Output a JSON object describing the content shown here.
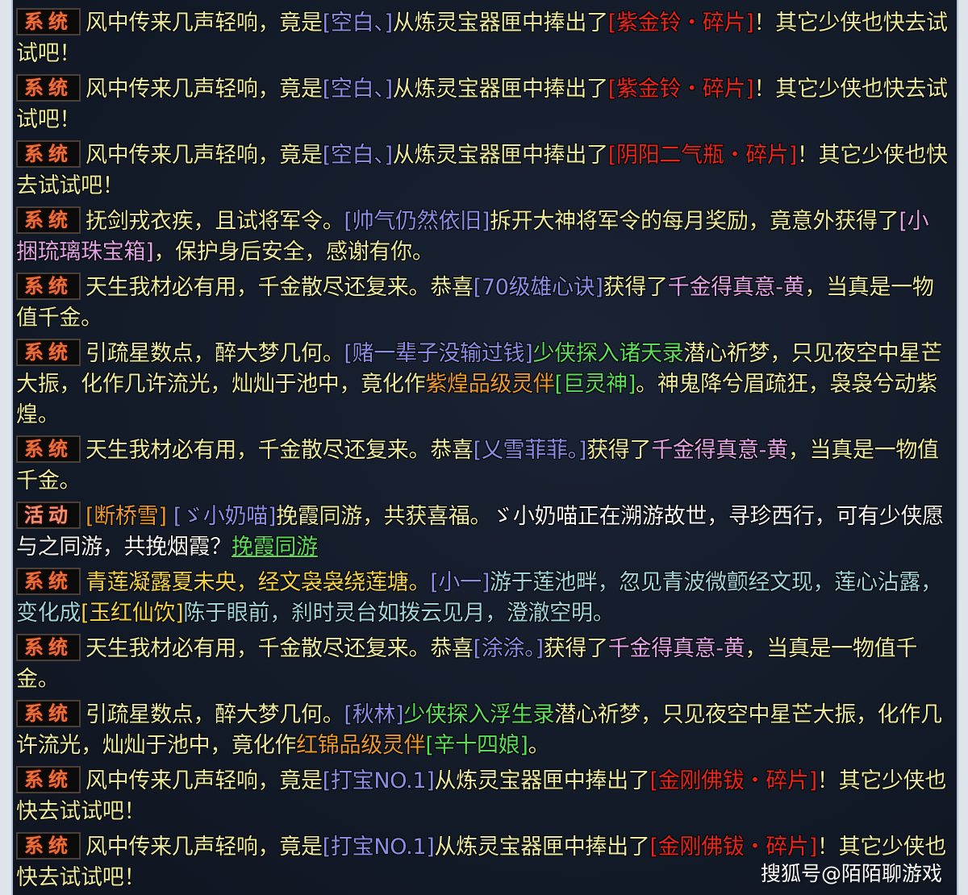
{
  "colors": {
    "y": "#ecea9e",
    "b": "#8a8ee6",
    "r": "#e8261e",
    "p": "#e2a2e6",
    "g": "#5edc5c",
    "o": "#eb9a32",
    "w": "#f4f4f4",
    "c": "#9fd4dc",
    "gold": "#f2d248",
    "background": "#141c2a"
  },
  "messages": [
    {
      "tag": "系统",
      "type": "system",
      "segments": [
        {
          "t": "风中传来几声轻响，竟是",
          "c": "y"
        },
        {
          "t": "[空白、]",
          "c": "b"
        },
        {
          "t": "从炼灵宝器匣中捧出了",
          "c": "y"
        },
        {
          "t": "[紫金铃・碎片]",
          "c": "r"
        },
        {
          "t": "！其它少侠也快去试试吧！",
          "c": "y"
        }
      ]
    },
    {
      "tag": "系统",
      "type": "system",
      "segments": [
        {
          "t": "风中传来几声轻响，竟是",
          "c": "y"
        },
        {
          "t": "[空白、]",
          "c": "b"
        },
        {
          "t": "从炼灵宝器匣中捧出了",
          "c": "y"
        },
        {
          "t": "[紫金铃・碎片]",
          "c": "r"
        },
        {
          "t": "！其它少侠也快去试试吧！",
          "c": "y"
        }
      ]
    },
    {
      "tag": "系统",
      "type": "system",
      "segments": [
        {
          "t": "风中传来几声轻响，竟是",
          "c": "y"
        },
        {
          "t": "[空白、]",
          "c": "b"
        },
        {
          "t": "从炼灵宝器匣中捧出了",
          "c": "y"
        },
        {
          "t": "[阴阳二气瓶・碎片]",
          "c": "r"
        },
        {
          "t": "！其它少侠也快去试试吧！",
          "c": "y"
        }
      ]
    },
    {
      "tag": "系统",
      "type": "system",
      "segments": [
        {
          "t": "抚剑戎衣疾，且试将军令。",
          "c": "y"
        },
        {
          "t": "[帅气仍然依旧]",
          "c": "b"
        },
        {
          "t": "拆开大神将军令的每月奖励，竟意外获得了",
          "c": "y"
        },
        {
          "t": "[小捆琉璃珠宝箱]",
          "c": "p"
        },
        {
          "t": "，保护身后安全，感谢有你。",
          "c": "y"
        }
      ]
    },
    {
      "tag": "系统",
      "type": "system",
      "segments": [
        {
          "t": "天生我材必有用，千金散尽还复来。恭喜",
          "c": "y"
        },
        {
          "t": "[70级雄心诀]",
          "c": "b"
        },
        {
          "t": "获得了",
          "c": "y"
        },
        {
          "t": "千金得真意-黄",
          "c": "p"
        },
        {
          "t": "，当真是一物值千金。",
          "c": "y"
        }
      ]
    },
    {
      "tag": "系统",
      "type": "system",
      "segments": [
        {
          "t": "引疏星数点，醉大梦几何。",
          "c": "y"
        },
        {
          "t": "[赌一辈子没输过钱]",
          "c": "b"
        },
        {
          "t": "少侠探入诸天录",
          "c": "g"
        },
        {
          "t": "潜心祈梦，只见夜空中星芒大振，化作几许流光，灿灿于池中，竟化作",
          "c": "y"
        },
        {
          "t": "紫煌品级灵伴",
          "c": "o"
        },
        {
          "t": "[巨灵神]",
          "c": "g"
        },
        {
          "t": "。神鬼降兮眉疏狂，袅袅兮动紫煌。",
          "c": "y"
        }
      ]
    },
    {
      "tag": "系统",
      "type": "system",
      "segments": [
        {
          "t": "天生我材必有用，千金散尽还复来。恭喜",
          "c": "y"
        },
        {
          "t": "[乂雪菲菲。]",
          "c": "b"
        },
        {
          "t": "获得了",
          "c": "y"
        },
        {
          "t": "千金得真意-黄",
          "c": "p"
        },
        {
          "t": "，当真是一物值千金。",
          "c": "y"
        }
      ]
    },
    {
      "tag": "活动",
      "type": "event",
      "segments": [
        {
          "t": "[断桥雪]",
          "c": "o"
        },
        {
          "t": " [ゞ小奶喵]",
          "c": "b"
        },
        {
          "t": "挽霞同游，共获喜福。",
          "c": "y"
        },
        {
          "t": "ゞ小奶喵正在溯游故世，寻珍西行，可有少侠愿与之同游，共挽烟霞？",
          "c": "w"
        },
        {
          "t": "挽霞同游",
          "c": "g",
          "link": true
        }
      ]
    },
    {
      "tag": "系统",
      "type": "system",
      "segments": [
        {
          "t": "青莲凝露夏未央，经文袅袅绕莲塘。",
          "c": "gold"
        },
        {
          "t": "[小一]",
          "c": "b"
        },
        {
          "t": "游于莲池畔，忽见青波微颤经文现，莲心沾露，变化成",
          "c": "c"
        },
        {
          "t": "[玉红仙饮]",
          "c": "gold"
        },
        {
          "t": "陈于眼前，刹时灵台如拨云见月，澄澈空明。",
          "c": "c"
        }
      ]
    },
    {
      "tag": "系统",
      "type": "system",
      "segments": [
        {
          "t": "天生我材必有用，千金散尽还复来。恭喜",
          "c": "y"
        },
        {
          "t": "[涂涂。]",
          "c": "b"
        },
        {
          "t": "获得了",
          "c": "y"
        },
        {
          "t": "千金得真意-黄",
          "c": "p"
        },
        {
          "t": "，当真是一物值千金。",
          "c": "y"
        }
      ]
    },
    {
      "tag": "系统",
      "type": "system",
      "segments": [
        {
          "t": "引疏星数点，醉大梦几何。",
          "c": "y"
        },
        {
          "t": "[秋林]",
          "c": "b"
        },
        {
          "t": "少侠探入浮生录",
          "c": "g"
        },
        {
          "t": "潜心祈梦，只见夜空中星芒大振，化作几许流光，灿灿于池中，竟化作",
          "c": "y"
        },
        {
          "t": "红锦品级灵伴",
          "c": "o"
        },
        {
          "t": "[辛十四娘]",
          "c": "g"
        },
        {
          "t": "。",
          "c": "y"
        }
      ]
    },
    {
      "tag": "系统",
      "type": "system",
      "segments": [
        {
          "t": "风中传来几声轻响，竟是",
          "c": "y"
        },
        {
          "t": "[打宝NO.1]",
          "c": "b"
        },
        {
          "t": "从炼灵宝器匣中捧出了",
          "c": "y"
        },
        {
          "t": "[金刚佛钹・碎片]",
          "c": "r"
        },
        {
          "t": "！其它少侠也快去试试吧！",
          "c": "y"
        }
      ]
    },
    {
      "tag": "系统",
      "type": "system",
      "segments": [
        {
          "t": "风中传来几声轻响，竟是",
          "c": "y"
        },
        {
          "t": "[打宝NO.1]",
          "c": "b"
        },
        {
          "t": "从炼灵宝器匣中捧出了",
          "c": "y"
        },
        {
          "t": "[金刚佛钹・碎片]",
          "c": "r"
        },
        {
          "t": "！其它少侠也快去试试吧！",
          "c": "y"
        }
      ]
    }
  ],
  "watermark": "搜狐号@陌陌聊游戏"
}
